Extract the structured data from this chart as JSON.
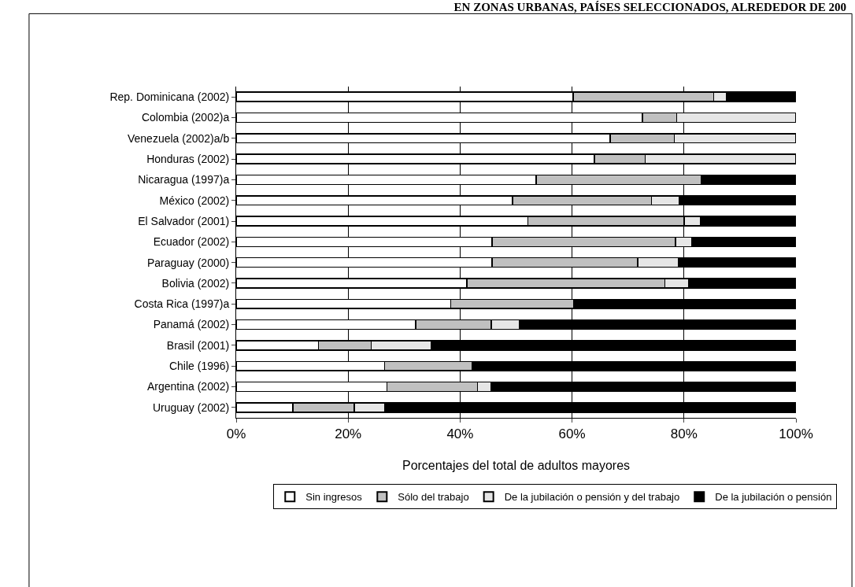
{
  "chart_data": {
    "type": "bar",
    "orientation": "horizontal",
    "stacked": true,
    "title": "EN ZONAS URBANAS, PAÍSES SELECCIONADOS, ALREDEDOR DE 200",
    "xlabel": "Porcentajes del total de adultos mayores",
    "categories": [
      "Rep. Dominicana (2002)",
      "Colombia (2002)a",
      "Venezuela (2002)a/b",
      "Honduras (2002)",
      "Nicaragua (1997)a",
      "México (2002)",
      "El Salvador (2001)",
      "Ecuador (2002)",
      "Paraguay (2000)",
      "Bolivia (2002)",
      "Costa Rica (1997)a",
      "Panamá (2002)",
      "Brasil (2001)",
      "Chile (1996)",
      "Argentina (2002)",
      "Uruguay (2002)"
    ],
    "series": [
      {
        "name": "Sin ingresos",
        "color": "#ffffff",
        "values": [
          60.2,
          72.6,
          66.8,
          64.0,
          53.6,
          49.4,
          52.1,
          45.7,
          45.7,
          41.2,
          38.3,
          32.1,
          14.7,
          26.5,
          26.9,
          10.1
        ]
      },
      {
        "name": "Sólo del trabajo",
        "color": "#c0c0c0",
        "values": [
          25.1,
          6.1,
          11.5,
          9.1,
          29.5,
          24.8,
          27.9,
          32.8,
          26.0,
          35.4,
          22.0,
          13.5,
          9.4,
          15.6,
          16.2,
          11.0
        ]
      },
      {
        "name": "De la jubilación o pensión y del trabajo",
        "color": "#e6e6e6",
        "values": [
          2.3,
          21.3,
          21.7,
          26.9,
          0,
          5.0,
          2.9,
          2.9,
          7.3,
          4.3,
          0,
          5.0,
          10.8,
          0,
          2.5,
          5.5
        ]
      },
      {
        "name": "De la jubilación o pensión",
        "color": "#000000",
        "values": [
          12.4,
          0,
          0,
          0,
          16.9,
          20.8,
          17.1,
          18.6,
          21.0,
          19.1,
          39.7,
          49.4,
          65.1,
          57.9,
          54.4,
          73.4
        ]
      }
    ],
    "xlim": [
      0,
      100
    ],
    "xticks": [
      {
        "value": 0,
        "label": "0%"
      },
      {
        "value": 20,
        "label": "20%"
      },
      {
        "value": 40,
        "label": "40%"
      },
      {
        "value": 60,
        "label": "60%"
      },
      {
        "value": 80,
        "label": "80%"
      },
      {
        "value": 100,
        "label": "100%"
      }
    ],
    "grid": "x",
    "legend": "bottom"
  }
}
